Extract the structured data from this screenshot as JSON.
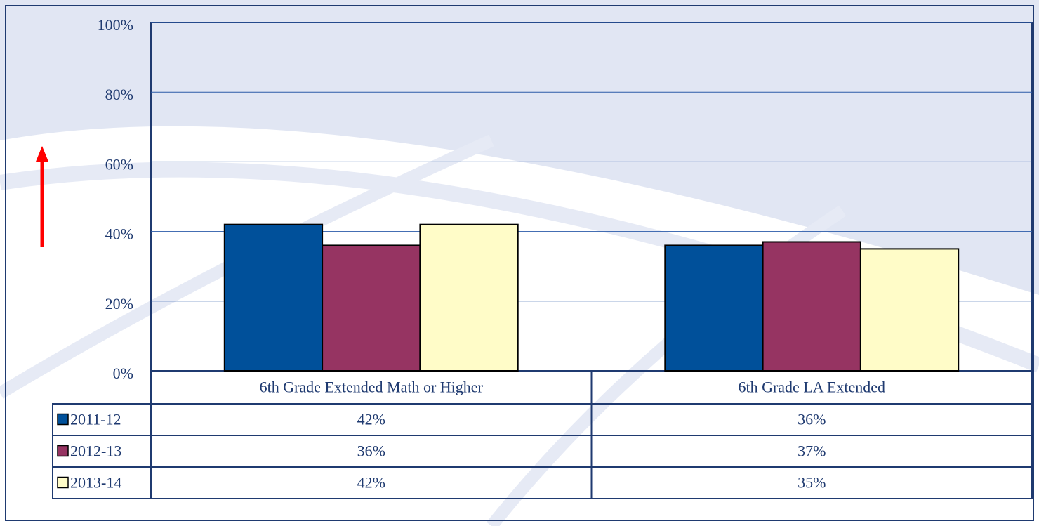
{
  "chart_data": {
    "type": "bar",
    "categories": [
      "6th Grade Extended Math or Higher",
      "6th Grade LA Extended"
    ],
    "series": [
      {
        "name": "2011-12",
        "color": "#00509a",
        "values": [
          42,
          36
        ],
        "value_labels": [
          "42%",
          "36%"
        ]
      },
      {
        "name": "2012-13",
        "color": "#963462",
        "values": [
          36,
          37
        ],
        "value_labels": [
          "36%",
          "37%"
        ]
      },
      {
        "name": "2013-14",
        "color": "#fffcc8",
        "values": [
          42,
          35
        ],
        "value_labels": [
          "42%",
          "35%"
        ]
      }
    ],
    "ylim": [
      0,
      100
    ],
    "yticks": [
      {
        "value": 0,
        "label": "0%"
      },
      {
        "value": 20,
        "label": "20%"
      },
      {
        "value": 40,
        "label": "40%"
      },
      {
        "value": 60,
        "label": "60%"
      },
      {
        "value": 80,
        "label": "80%"
      },
      {
        "value": 100,
        "label": "100%"
      }
    ],
    "grid": true
  }
}
